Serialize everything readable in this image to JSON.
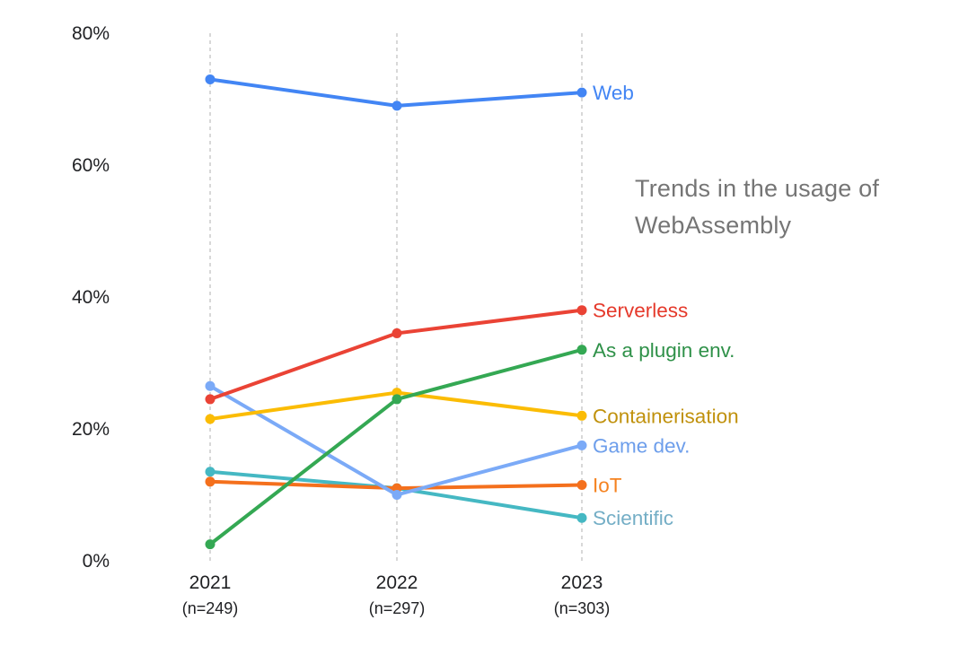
{
  "title": {
    "line1": "Trends in the usage of",
    "line2": "WebAssembly",
    "color": "#757575"
  },
  "chart_data": {
    "type": "line",
    "title": "Trends in the usage of WebAssembly",
    "x": [
      "2021",
      "2022",
      "2023"
    ],
    "x_sublabels": [
      "(n=249)",
      "(n=297)",
      "(n=303)"
    ],
    "xlabel": "",
    "ylabel": "",
    "ylim": [
      0,
      80
    ],
    "yticks": [
      "0%",
      "20%",
      "40%",
      "60%",
      "80%"
    ],
    "ytick_values": [
      0,
      20,
      40,
      60,
      80
    ],
    "grid": "vertical-dashed",
    "legend_position": "right-end-labels",
    "series": [
      {
        "name": "Web",
        "values": [
          73.0,
          69.0,
          71.0
        ],
        "color": "#4285F4",
        "label_color": "#4285F4"
      },
      {
        "name": "Serverless",
        "values": [
          24.5,
          34.5,
          38.0
        ],
        "color": "#EA4335",
        "label_color": "#E5392B"
      },
      {
        "name": "As a plugin env.",
        "values": [
          2.5,
          24.5,
          32.0
        ],
        "color": "#34A853",
        "label_color": "#2F9149"
      },
      {
        "name": "Containerisation",
        "values": [
          21.5,
          25.5,
          22.0
        ],
        "color": "#FBBC04",
        "label_color": "#C0910C"
      },
      {
        "name": "Game dev.",
        "values": [
          26.5,
          10.0,
          17.5
        ],
        "color": "#7BAAF7",
        "label_color": "#6D9EEB"
      },
      {
        "name": "IoT",
        "values": [
          12.0,
          11.0,
          11.5
        ],
        "color": "#F4701D",
        "label_color": "#F5821F"
      },
      {
        "name": "Scientific",
        "values": [
          13.5,
          11.0,
          6.5
        ],
        "color": "#45B8C3",
        "label_color": "#74AEC6"
      }
    ],
    "axis_text_color": "#202124",
    "gridline_color": "#c8c8c8"
  }
}
